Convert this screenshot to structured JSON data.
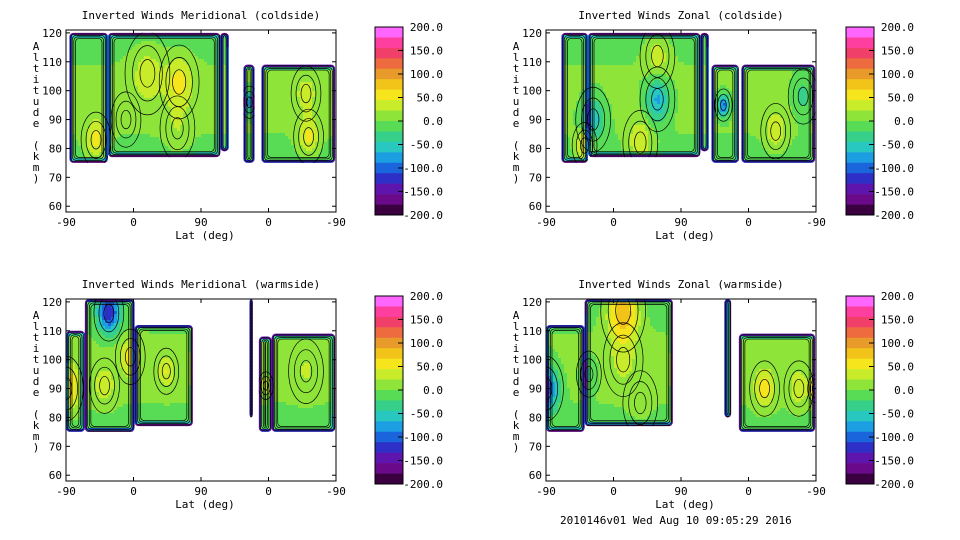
{
  "footer": "2010146v01 Wed Aug 10 09:05:29 2016",
  "colorbar": {
    "labels": [
      "200.0",
      "150.0",
      "100.0",
      "50.0",
      "0.0",
      "-50.0",
      "-100.0",
      "-150.0",
      "-200.0"
    ],
    "colors": [
      "#ff66ff",
      "#ff3f9f",
      "#f0406a",
      "#ee6b3f",
      "#e89b2a",
      "#f2c41a",
      "#f6e51c",
      "#c8ec2a",
      "#8fe43a",
      "#58dc55",
      "#36d08a",
      "#28c8c0",
      "#1c9ee2",
      "#1a64dc",
      "#2e2fc6",
      "#5e15ad",
      "#6a0a8a",
      "#3a0040"
    ]
  },
  "chart_data": [
    {
      "type": "heatmap",
      "title": "Inverted Winds Meridional (coldside)",
      "xlabel": "Lat (deg)",
      "ylabel": "Altitude (km)",
      "x_tick_labels": [
        "-90",
        "0",
        "90",
        "0",
        "-90"
      ],
      "y_ticks": [
        60,
        70,
        80,
        90,
        100,
        110,
        120
      ],
      "ylim": [
        58,
        121
      ],
      "colorbar_range": [
        -200,
        200
      ],
      "contours": true,
      "regions": [
        {
          "x0": -86,
          "x1": -41,
          "y0": 75,
          "y1": 120
        },
        {
          "x0": -41,
          "x1": 90,
          "y0": 77,
          "y1": 120
        },
        {
          "x0": 90,
          "x1": 100,
          "y0": 79,
          "y1": 120
        },
        {
          "x0": 117,
          "x1": 130,
          "y0": 75,
          "y1": 109
        },
        {
          "x0": 138,
          "x1": 224,
          "y0": 75,
          "y1": 109
        }
      ],
      "features": [
        {
          "x": 5,
          "y": 106,
          "v": 40,
          "r": 18
        },
        {
          "x": 42,
          "y": 103,
          "v": 55,
          "r": 16
        },
        {
          "x": -20,
          "y": 90,
          "v": 5,
          "r": 12
        },
        {
          "x": -55,
          "y": 83,
          "v": 60,
          "r": 12
        },
        {
          "x": 40,
          "y": 87,
          "v": 25,
          "r": 14
        },
        {
          "x": 193,
          "y": 84,
          "v": 55,
          "r": 12
        },
        {
          "x": 190,
          "y": 99,
          "v": 35,
          "r": 12
        },
        {
          "x": 124,
          "y": 96,
          "v": -80,
          "r": 7
        }
      ]
    },
    {
      "type": "heatmap",
      "title": "Inverted Winds Zonal (coldside)",
      "xlabel": "Lat (deg)",
      "ylabel": "Altitude (km)",
      "x_tick_labels": [
        "-90",
        "0",
        "90",
        "0",
        "-90"
      ],
      "y_ticks": [
        60,
        70,
        80,
        90,
        100,
        110,
        120
      ],
      "ylim": [
        58,
        121
      ],
      "colorbar_range": [
        -200,
        200
      ],
      "contours": true,
      "regions": [
        {
          "x0": -72,
          "x1": -41,
          "y0": 75,
          "y1": 120
        },
        {
          "x0": -41,
          "x1": 90,
          "y0": 77,
          "y1": 120
        },
        {
          "x0": 90,
          "x1": 100,
          "y0": 79,
          "y1": 120
        },
        {
          "x0": 103,
          "x1": 135,
          "y0": 75,
          "y1": 109
        },
        {
          "x0": 138,
          "x1": 224,
          "y0": 75,
          "y1": 109
        }
      ],
      "features": [
        {
          "x": -35,
          "y": 90,
          "v": -55,
          "r": 14
        },
        {
          "x": 40,
          "y": 97,
          "v": -70,
          "r": 14
        },
        {
          "x": 40,
          "y": 112,
          "v": 45,
          "r": 14
        },
        {
          "x": 20,
          "y": 82,
          "v": 50,
          "r": 14
        },
        {
          "x": -45,
          "y": 81,
          "v": 70,
          "r": 10
        },
        {
          "x": 178,
          "y": 86,
          "v": 45,
          "r": 12
        },
        {
          "x": 210,
          "y": 98,
          "v": -30,
          "r": 12
        },
        {
          "x": 117,
          "y": 95,
          "v": -95,
          "r": 7
        }
      ]
    },
    {
      "type": "heatmap",
      "title": "Inverted Winds Meridional (warmside)",
      "xlabel": "Lat (deg)",
      "ylabel": "Altitude (km)",
      "x_tick_labels": [
        "-90",
        "0",
        "90",
        "0",
        "-90"
      ],
      "y_ticks": [
        60,
        70,
        80,
        90,
        100,
        110,
        120
      ],
      "ylim": [
        58,
        121
      ],
      "colorbar_range": [
        -200,
        200
      ],
      "contours": true,
      "regions": [
        {
          "x0": -90,
          "x1": -68,
          "y0": 75,
          "y1": 110
        },
        {
          "x0": -68,
          "x1": -10,
          "y0": 75,
          "y1": 121
        },
        {
          "x0": -10,
          "x1": 58,
          "y0": 77,
          "y1": 112
        },
        {
          "x0": 124,
          "x1": 128,
          "y0": 80,
          "y1": 121
        },
        {
          "x0": 135,
          "x1": 150,
          "y0": 75,
          "y1": 108
        },
        {
          "x0": 150,
          "x1": 224,
          "y0": 75,
          "y1": 109
        }
      ],
      "features": [
        {
          "x": -90,
          "y": 90,
          "v": 90,
          "r": 14
        },
        {
          "x": -45,
          "y": 91,
          "v": 40,
          "r": 12
        },
        {
          "x": -15,
          "y": 101,
          "v": 55,
          "r": 12
        },
        {
          "x": 27,
          "y": 96,
          "v": 45,
          "r": 10
        },
        {
          "x": -40,
          "y": 116,
          "v": -120,
          "r": 12
        },
        {
          "x": 190,
          "y": 96,
          "v": 25,
          "r": 14
        },
        {
          "x": 143,
          "y": 91,
          "v": 45,
          "r": 6
        }
      ]
    },
    {
      "type": "heatmap",
      "title": "Inverted Winds Zonal (warmside)",
      "xlabel": "Lat (deg)",
      "ylabel": "Altitude (km)",
      "x_tick_labels": [
        "-90",
        "0",
        "90",
        "0",
        "-90"
      ],
      "y_ticks": [
        60,
        70,
        80,
        90,
        100,
        110,
        120
      ],
      "ylim": [
        58,
        121
      ],
      "colorbar_range": [
        -200,
        200
      ],
      "contours": true,
      "regions": [
        {
          "x0": -90,
          "x1": -45,
          "y0": 75,
          "y1": 112
        },
        {
          "x0": -45,
          "x1": 58,
          "y0": 77,
          "y1": 121
        },
        {
          "x0": 118,
          "x1": 126,
          "y0": 80,
          "y1": 121
        },
        {
          "x0": 135,
          "x1": 224,
          "y0": 75,
          "y1": 109
        }
      ],
      "features": [
        {
          "x": -90,
          "y": 90,
          "v": -110,
          "r": 14
        },
        {
          "x": 0,
          "y": 117,
          "v": 100,
          "r": 18
        },
        {
          "x": 0,
          "y": 100,
          "v": 30,
          "r": 16
        },
        {
          "x": -40,
          "y": 95,
          "v": -25,
          "r": 10
        },
        {
          "x": 20,
          "y": 85,
          "v": 15,
          "r": 14
        },
        {
          "x": 165,
          "y": 90,
          "v": 60,
          "r": 12
        },
        {
          "x": 205,
          "y": 90,
          "v": 40,
          "r": 12
        },
        {
          "x": 224,
          "y": 90,
          "v": 70,
          "r": 6
        }
      ]
    }
  ]
}
